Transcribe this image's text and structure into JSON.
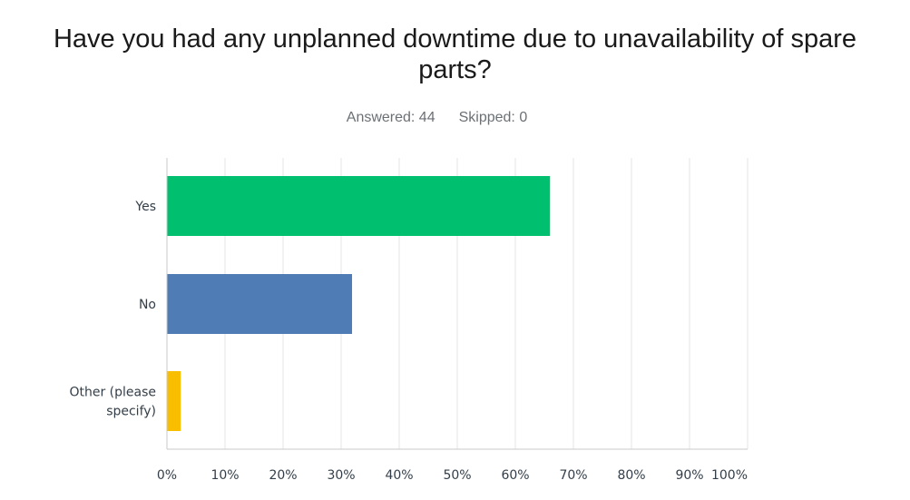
{
  "title_lines": [
    "Have you had any unplanned downtime due to unavailability of spare",
    "parts?"
  ],
  "stats": {
    "answered": "Answered: 44",
    "skipped": "Skipped: 0"
  },
  "colors": {
    "grid": "#e6e6e6",
    "axis": "#c8c8c8"
  },
  "chart_data": {
    "type": "bar",
    "orientation": "horizontal",
    "title": "Have you had any unplanned downtime due to unavailability of spare parts?",
    "categories": [
      {
        "lines": [
          "Yes"
        ],
        "color": "#00bf6f"
      },
      {
        "lines": [
          "No"
        ],
        "color": "#507cb6"
      },
      {
        "lines": [
          "Other (please",
          "specify)"
        ],
        "color": "#f9be00"
      }
    ],
    "values": [
      65.9,
      31.8,
      2.3
    ],
    "xlim": [
      0,
      100
    ],
    "xticks": [
      0,
      10,
      20,
      30,
      40,
      50,
      60,
      70,
      80,
      90,
      100
    ],
    "xtick_labels": [
      "0%",
      "10%",
      "20%",
      "30%",
      "40%",
      "50%",
      "60%",
      "70%",
      "80%",
      "90%",
      "100%"
    ],
    "grid": true
  }
}
